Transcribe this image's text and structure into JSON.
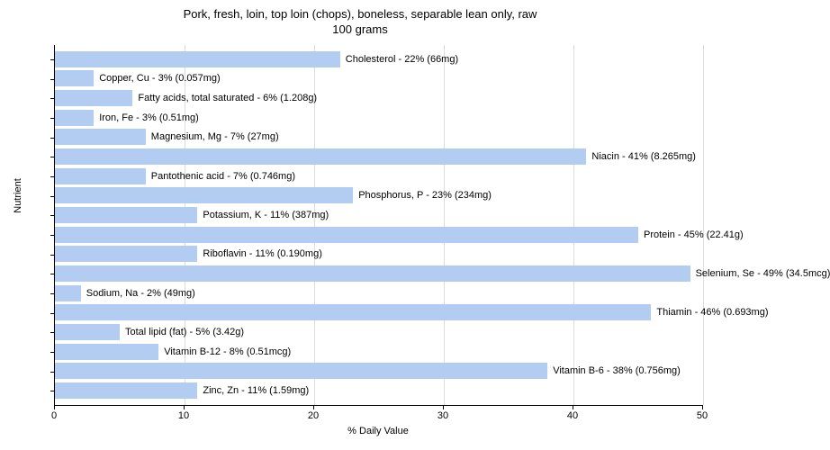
{
  "chart": {
    "type": "bar-horizontal",
    "title_line1": "Pork, fresh, loin, top loin (chops), boneless, separable lean only, raw",
    "title_line2": "100 grams",
    "title_fontsize": 13,
    "x_axis_label": "% Daily Value",
    "y_axis_label": "Nutrient",
    "label_fontsize": 11,
    "xlim_min": 0,
    "xlim_max": 50,
    "xtick_step": 10,
    "xticks": [
      0,
      10,
      20,
      30,
      40,
      50
    ],
    "bar_color": "#b3cdf2",
    "grid_color": "#dcdcdc",
    "background_color": "#ffffff",
    "axis_color": "#000000",
    "text_color": "#000000",
    "bars": [
      {
        "name": "Cholesterol",
        "value": 22,
        "label": "Cholesterol - 22% (66mg)"
      },
      {
        "name": "Copper, Cu",
        "value": 3,
        "label": "Copper, Cu - 3% (0.057mg)"
      },
      {
        "name": "Fatty acids, total saturated",
        "value": 6,
        "label": "Fatty acids, total saturated - 6% (1.208g)"
      },
      {
        "name": "Iron, Fe",
        "value": 3,
        "label": "Iron, Fe - 3% (0.51mg)"
      },
      {
        "name": "Magnesium, Mg",
        "value": 7,
        "label": "Magnesium, Mg - 7% (27mg)"
      },
      {
        "name": "Niacin",
        "value": 41,
        "label": "Niacin - 41% (8.265mg)"
      },
      {
        "name": "Pantothenic acid",
        "value": 7,
        "label": "Pantothenic acid - 7% (0.746mg)"
      },
      {
        "name": "Phosphorus, P",
        "value": 23,
        "label": "Phosphorus, P - 23% (234mg)"
      },
      {
        "name": "Potassium, K",
        "value": 11,
        "label": "Potassium, K - 11% (387mg)"
      },
      {
        "name": "Protein",
        "value": 45,
        "label": "Protein - 45% (22.41g)"
      },
      {
        "name": "Riboflavin",
        "value": 11,
        "label": "Riboflavin - 11% (0.190mg)"
      },
      {
        "name": "Selenium, Se",
        "value": 49,
        "label": "Selenium, Se - 49% (34.5mcg)"
      },
      {
        "name": "Sodium, Na",
        "value": 2,
        "label": "Sodium, Na - 2% (49mg)"
      },
      {
        "name": "Thiamin",
        "value": 46,
        "label": "Thiamin - 46% (0.693mg)"
      },
      {
        "name": "Total lipid (fat)",
        "value": 5,
        "label": "Total lipid (fat) - 5% (3.42g)"
      },
      {
        "name": "Vitamin B-12",
        "value": 8,
        "label": "Vitamin B-12 - 8% (0.51mcg)"
      },
      {
        "name": "Vitamin B-6",
        "value": 38,
        "label": "Vitamin B-6 - 38% (0.756mg)"
      },
      {
        "name": "Zinc, Zn",
        "value": 11,
        "label": "Zinc, Zn - 11% (1.59mg)"
      }
    ]
  }
}
